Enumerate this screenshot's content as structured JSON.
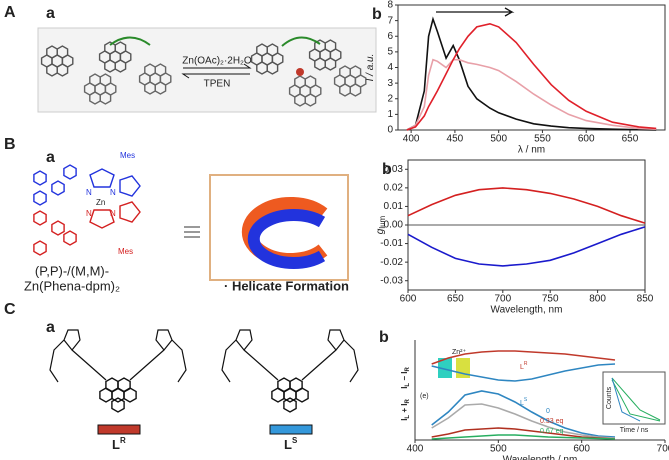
{
  "figure": {
    "panels": [
      {
        "label": "A",
        "sub": "a",
        "reagent": "Zn(OAc)₂·2H₂O",
        "reverse": "TPEN"
      },
      {
        "label": "B",
        "sub": "a",
        "mes": "Mes",
        "metal": "Zn",
        "atom": "N",
        "ligand_1": "(P,P)-/(M,M)-",
        "ligand_2": "Zn(Phena-dpm)₂",
        "caption": "· Helicate Formation"
      },
      {
        "label": "C",
        "sub": "a",
        "ligand": "L",
        "isomer_r": "R",
        "isomer_s": "S"
      }
    ]
  },
  "chart_data": [
    {
      "type": "line",
      "panel": "b",
      "ylabel": "I / a.u.",
      "xlabel": "λ / nm",
      "xlim": [
        385,
        690
      ],
      "ylim": [
        0,
        8
      ],
      "xticks": [
        400,
        450,
        500,
        550,
        600,
        650
      ],
      "yticks": [
        0,
        1,
        2,
        3,
        4,
        5,
        6,
        7,
        8
      ],
      "x": [
        395,
        405,
        415,
        420,
        425,
        430,
        440,
        448,
        455,
        465,
        475,
        490,
        500,
        520,
        540,
        560,
        580,
        600,
        630,
        660,
        680
      ],
      "series": [
        {
          "color": "#111111",
          "values": [
            0,
            0.3,
            2.5,
            6,
            7.1,
            6.3,
            4.6,
            5.4,
            4.5,
            2.8,
            2.0,
            1.4,
            1.1,
            0.7,
            0.4,
            0.25,
            0.15,
            0.1,
            0.05,
            0.02,
            0
          ]
        },
        {
          "color": "#e8a0a8",
          "values": [
            0,
            0.3,
            1.5,
            3.5,
            4.5,
            4.4,
            4.0,
            4.5,
            4.5,
            4.3,
            4.2,
            4.0,
            3.8,
            3.1,
            2.3,
            1.6,
            1.0,
            0.6,
            0.3,
            0.1,
            0.05
          ]
        },
        {
          "color": "#e0202a",
          "values": [
            0,
            0.2,
            0.9,
            1.5,
            2.0,
            2.5,
            3.6,
            4.5,
            5.2,
            6.0,
            6.6,
            6.8,
            6.6,
            5.6,
            4.2,
            2.9,
            1.9,
            1.2,
            0.5,
            0.2,
            0.1
          ]
        }
      ]
    },
    {
      "type": "line",
      "panel": "b",
      "ylabel": "g",
      "ylabel_sub": "lum",
      "xlabel": "Wavelength, nm",
      "xlim": [
        600,
        850
      ],
      "ylim": [
        -0.035,
        0.035
      ],
      "xticks": [
        600,
        650,
        700,
        750,
        800,
        850
      ],
      "yticks": [
        -0.03,
        -0.02,
        -0.01,
        {
          "value": 0,
          "label": "0.00"
        },
        0.01,
        0.02,
        0.03
      ],
      "x": [
        600,
        625,
        650,
        675,
        700,
        725,
        750,
        775,
        800,
        825,
        850
      ],
      "series": [
        {
          "color": "#d42020",
          "values": [
            0.005,
            0.011,
            0.016,
            0.019,
            0.02,
            0.019,
            0.017,
            0.014,
            0.01,
            0.005,
            0.001
          ]
        },
        {
          "color": "#1a1acc",
          "values": [
            -0.005,
            -0.012,
            -0.018,
            -0.021,
            -0.022,
            -0.021,
            -0.019,
            -0.015,
            -0.01,
            -0.005,
            -0.001
          ]
        }
      ]
    },
    {
      "type": "line",
      "panel": "b",
      "ylabel_cd": [
        "I",
        "L",
        " − I",
        "R"
      ],
      "ylabel_em": [
        "I",
        "L",
        " + I",
        "R"
      ],
      "xlabel": "Wavelength / nm",
      "xlim": [
        400,
        700
      ],
      "ylim": [
        0,
        10
      ],
      "xticks": [
        400,
        500,
        600,
        700
      ],
      "x": [
        420,
        440,
        460,
        480,
        500,
        520,
        540,
        560,
        580,
        600,
        620,
        640
      ],
      "series": [
        {
          "color": "#c0392b",
          "values": [
            7.6,
            8.2,
            8.6,
            8.8,
            8.9,
            8.9,
            8.8,
            8.7,
            8.6,
            8.4,
            8.2,
            8.0
          ]
        },
        {
          "color": "#2e86c1",
          "values": [
            7.4,
            7.0,
            6.6,
            6.3,
            6.0,
            5.9,
            6.1,
            6.5,
            6.9,
            7.2,
            7.5,
            7.6
          ]
        },
        {
          "color": "#2e86c1",
          "values": [
            1.5,
            2.8,
            4.5,
            4.9,
            4.6,
            3.8,
            2.8,
            1.9,
            1.2,
            0.7,
            0.4,
            0.3
          ]
        },
        {
          "color": "#aaaaaa",
          "values": [
            1.2,
            2.2,
            3.5,
            3.6,
            3.2,
            2.6,
            1.9,
            1.3,
            0.8,
            0.5,
            0.3,
            0.2
          ]
        },
        {
          "color": "#b03020",
          "values": [
            0.3,
            0.6,
            1.0,
            1.1,
            1.2,
            1.1,
            0.9,
            0.7,
            0.5,
            0.3,
            0.2,
            0.1
          ]
        },
        {
          "color": "#27ae60",
          "values": [
            0.1,
            0.2,
            0.3,
            0.4,
            0.5,
            0.5,
            0.4,
            0.3,
            0.25,
            0.2,
            0.15,
            0.1
          ]
        }
      ],
      "annotations": [
        {
          "text": "Zn²⁺"
        },
        {
          "text": "(e)"
        },
        {
          "text": "L",
          "sup": "R",
          "color": "#c0392b"
        },
        {
          "text": "L",
          "sup": "S",
          "color": "#2e86c1"
        },
        {
          "text": "0",
          "color": "#2e86c1"
        },
        {
          "text": "0.33 eq",
          "color": "#c0392b"
        },
        {
          "text": "0.67 eq",
          "color": "#27ae60"
        },
        {
          "text": "Counts"
        },
        {
          "text": "Time / ns"
        }
      ]
    }
  ]
}
